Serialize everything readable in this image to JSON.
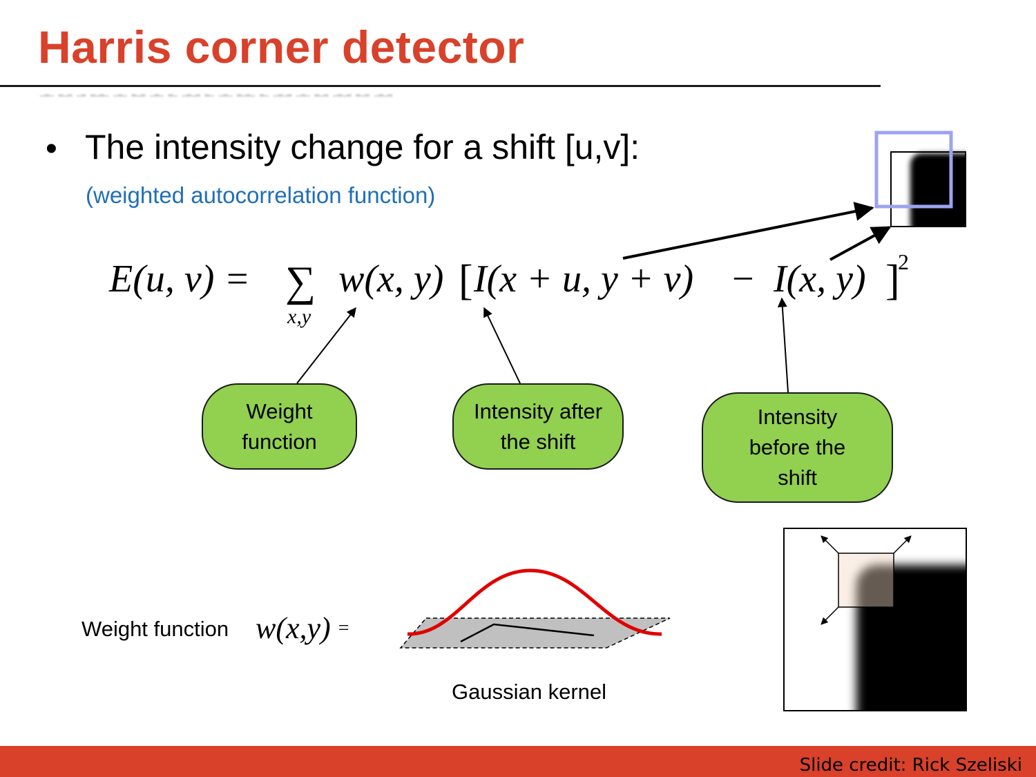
{
  "slide": {
    "title": "Harris corner detector",
    "bullet": "The intensity change for a shift [u,v]:",
    "subtitle": "(weighted autocorrelation function)",
    "formula": {
      "lhs": "E(u, v) = ",
      "sum_symbol": "∑",
      "sum_sub": "x,y",
      "weight": "w(x, y)",
      "bracket_open": "[",
      "shifted": "I(x + u, y + v)",
      "minus": " − ",
      "original": "I(x, y)",
      "bracket_close": "]",
      "power": "2"
    },
    "callouts": [
      {
        "label": "Weight\nfunction"
      },
      {
        "label": "Intensity after\nthe shift"
      },
      {
        "label": "Intensity\nbefore the\nshift"
      }
    ],
    "weight_function": {
      "label": "Weight function",
      "expression": "w(x,y)",
      "equals": "="
    },
    "gaussian_caption": "Gaussian kernel",
    "footer": {
      "credit": "Slide credit: Rick Szeliski"
    }
  },
  "colors": {
    "title": "#d9412a",
    "subtitle": "#1f6fb7",
    "bubble_fill": "#92d050",
    "footer_bar": "#d9412a",
    "gaussian_curve": "#e00000",
    "window_outline": "#9da3f0",
    "window_fill": "#f2d9c4"
  }
}
